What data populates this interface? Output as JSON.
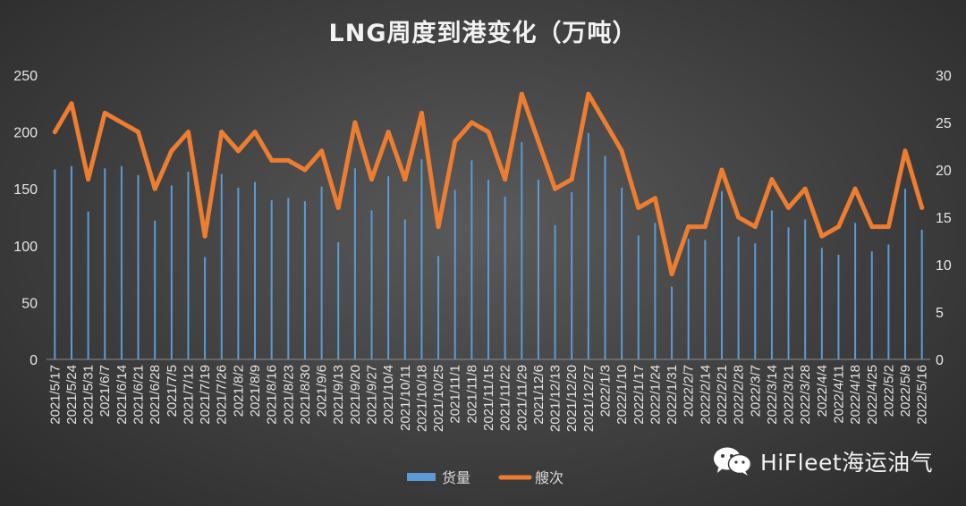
{
  "chart_data": {
    "type": "bar+line",
    "title": "LNG周度到港变化（万吨）",
    "categories": [
      "2021/5/17",
      "2021/5/24",
      "2021/5/31",
      "2021/6/7",
      "2021/6/14",
      "2021/6/21",
      "2021/6/28",
      "2021/7/5",
      "2021/7/12",
      "2021/7/19",
      "2021/7/26",
      "2021/8/2",
      "2021/8/9",
      "2021/8/16",
      "2021/8/23",
      "2021/8/30",
      "2021/9/6",
      "2021/9/13",
      "2021/9/20",
      "2021/9/27",
      "2021/10/4",
      "2021/10/11",
      "2021/10/18",
      "2021/10/25",
      "2021/11/1",
      "2021/11/8",
      "2021/11/15",
      "2021/11/22",
      "2021/11/29",
      "2021/12/6",
      "2021/12/13",
      "2021/12/20",
      "2021/12/27",
      "2022/1/3",
      "2022/1/10",
      "2022/1/17",
      "2022/1/24",
      "2022/1/31",
      "2022/2/7",
      "2022/2/14",
      "2022/2/21",
      "2022/2/28",
      "2022/3/7",
      "2022/3/14",
      "2022/3/21",
      "2022/3/28",
      "2022/4/4",
      "2022/4/11",
      "2022/4/18",
      "2022/4/25",
      "2022/5/2",
      "2022/5/9",
      "2022/5/16"
    ],
    "series": [
      {
        "name": "货量",
        "type": "bar",
        "axis": "left",
        "color": "#5b9bd5",
        "values": [
          167,
          170,
          130,
          168,
          170,
          162,
          122,
          153,
          165,
          90,
          163,
          151,
          156,
          140,
          142,
          139,
          152,
          103,
          168,
          131,
          161,
          123,
          176,
          91,
          149,
          175,
          158,
          143,
          191,
          158,
          118,
          147,
          199,
          179,
          151,
          109,
          120,
          64,
          106,
          105,
          148,
          108,
          102,
          131,
          116,
          123,
          98,
          92,
          120,
          95,
          101,
          150,
          114
        ]
      },
      {
        "name": "艘次",
        "type": "line",
        "axis": "right",
        "color": "#ed7d31",
        "values": [
          24,
          27,
          19,
          26,
          25,
          24,
          18,
          22,
          24,
          13,
          24,
          22,
          24,
          21,
          21,
          20,
          22,
          16,
          25,
          19,
          24,
          19,
          26,
          14,
          23,
          25,
          24,
          19,
          28,
          23,
          18,
          19,
          28,
          25,
          22,
          16,
          17,
          9,
          14,
          14,
          20,
          15,
          14,
          19,
          16,
          18,
          13,
          14,
          18,
          14,
          14,
          22,
          16
        ]
      }
    ],
    "y_left": {
      "min": 0,
      "max": 250,
      "ticks": [
        0,
        50,
        100,
        150,
        200,
        250
      ]
    },
    "y_right": {
      "min": 0,
      "max": 30,
      "ticks": [
        0,
        5,
        10,
        15,
        20,
        25,
        30
      ]
    },
    "grid": false,
    "legend_position": "bottom-center"
  },
  "watermark": {
    "text": "HiFleet海运油气",
    "icon": "wechat-icon"
  }
}
